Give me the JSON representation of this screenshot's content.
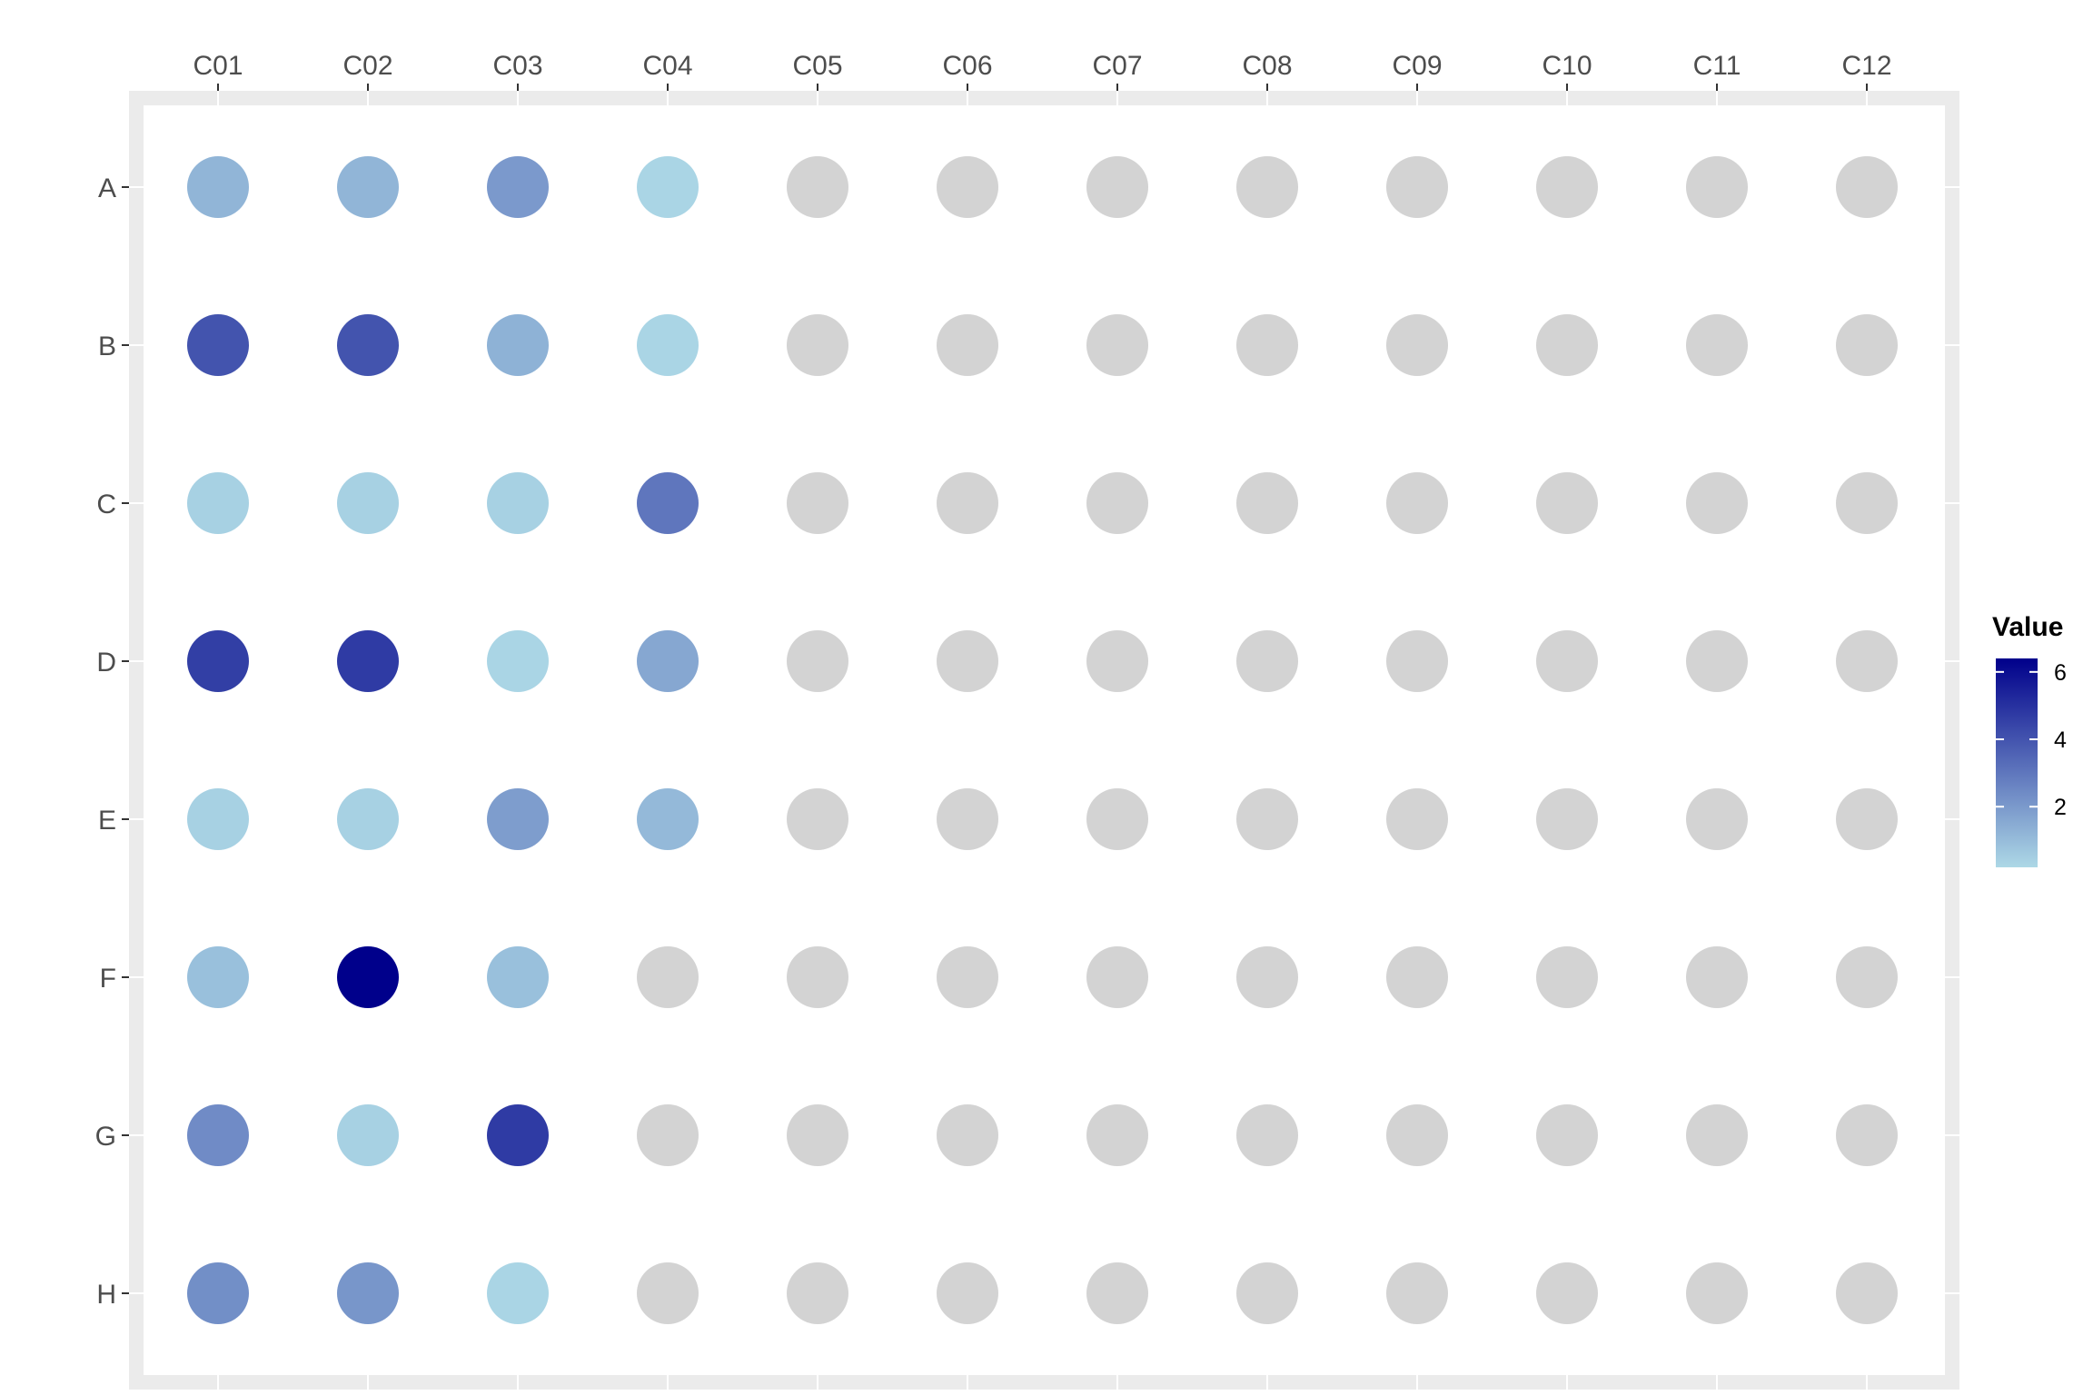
{
  "chart_data": {
    "type": "scatter",
    "title": "",
    "xlabel": "",
    "ylabel": "",
    "columns": [
      "C01",
      "C02",
      "C03",
      "C04",
      "C05",
      "C06",
      "C07",
      "C08",
      "C09",
      "C10",
      "C11",
      "C12"
    ],
    "rows": [
      "A",
      "B",
      "C",
      "D",
      "E",
      "F",
      "G",
      "H"
    ],
    "values": [
      [
        1.2,
        1.2,
        2.0,
        0.3,
        null,
        null,
        null,
        null,
        null,
        null,
        null,
        null
      ],
      [
        4.0,
        4.0,
        1.3,
        0.3,
        null,
        null,
        null,
        null,
        null,
        null,
        null,
        null
      ],
      [
        0.4,
        0.4,
        0.4,
        3.0,
        null,
        null,
        null,
        null,
        null,
        null,
        null,
        null
      ],
      [
        4.6,
        4.7,
        0.3,
        1.6,
        null,
        null,
        null,
        null,
        null,
        null,
        null,
        null
      ],
      [
        0.4,
        0.4,
        1.9,
        1.1,
        null,
        null,
        null,
        null,
        null,
        null,
        null,
        null
      ],
      [
        0.9,
        6.4,
        0.9,
        null,
        null,
        null,
        null,
        null,
        null,
        null,
        null,
        null
      ],
      [
        2.4,
        0.4,
        4.7,
        null,
        null,
        null,
        null,
        null,
        null,
        null,
        null,
        null
      ],
      [
        2.3,
        2.1,
        0.3,
        null,
        null,
        null,
        null,
        null,
        null,
        null,
        null,
        null
      ]
    ],
    "missing_color": "#d3d3d3",
    "color_low": "#add8e6",
    "color_high": "#00008b",
    "legend": {
      "title": "Value",
      "position": "right",
      "ticks": [
        2,
        4,
        6
      ],
      "range": [
        0.2,
        6.4
      ]
    },
    "x_axis_position": "top",
    "grid": true
  }
}
